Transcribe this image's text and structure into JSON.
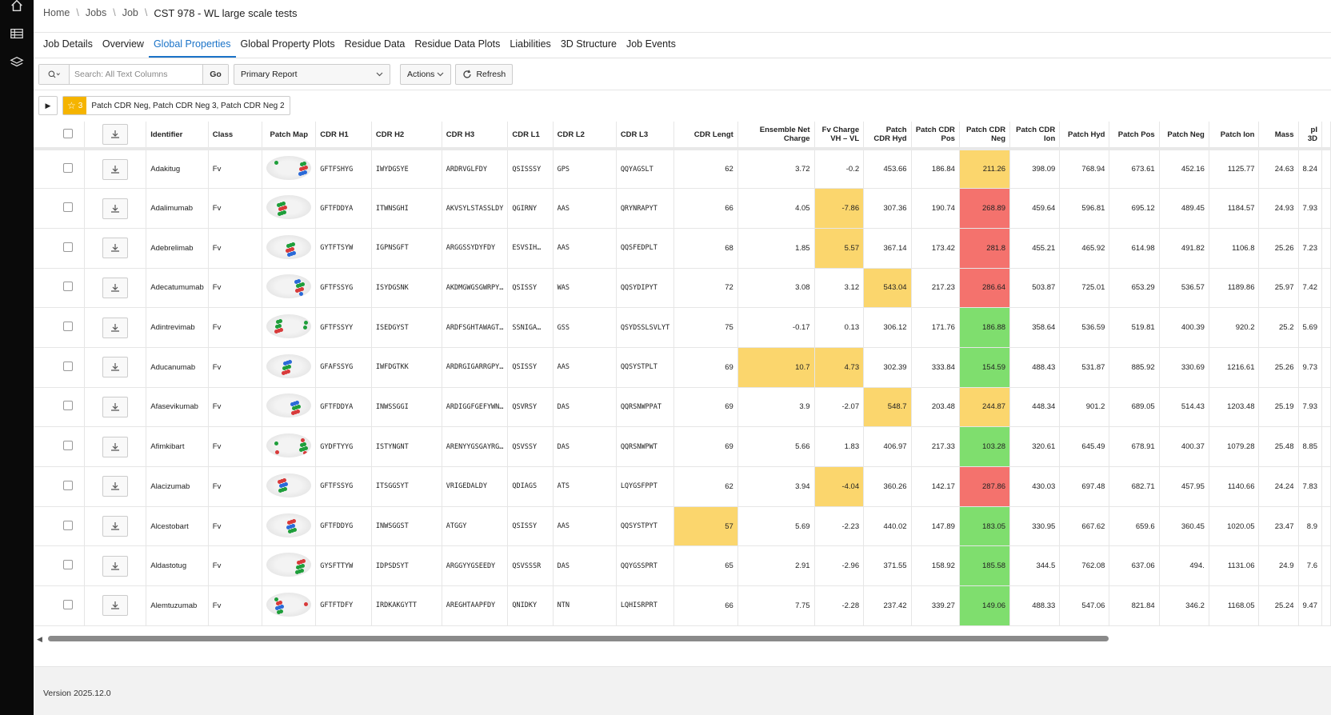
{
  "sidebar": {
    "items": [
      {
        "icon": "home-icon"
      },
      {
        "icon": "table-icon"
      },
      {
        "icon": "layers-icon"
      }
    ]
  },
  "breadcrumb": {
    "items": [
      "Home",
      "Jobs",
      "Job"
    ],
    "current": "CST 978 - WL large scale tests"
  },
  "tabs": [
    "Job Details",
    "Overview",
    "Global Properties",
    "Global Property Plots",
    "Residue Data",
    "Residue Data Plots",
    "Liabilities",
    "3D Structure",
    "Job Events"
  ],
  "active_tab": "Global Properties",
  "toolbar": {
    "search_placeholder": "Search: All Text Columns",
    "go_label": "Go",
    "report_label": "Primary Report",
    "actions_label": "Actions",
    "refresh_label": "Refresh"
  },
  "filter": {
    "count": "3",
    "text": "Patch CDR Neg, Patch CDR Neg 3, Patch CDR Neg 2"
  },
  "colors": {
    "yellow": "#fbd66d",
    "red": "#f4726d",
    "green": "#7fde6e",
    "accent": "#1a73c8"
  },
  "columns": [
    "Identifier",
    "Class",
    "Patch Map",
    "CDR H1",
    "CDR H2",
    "CDR H3",
    "CDR L1",
    "CDR L2",
    "CDR L3",
    "CDR Lengt",
    "Ensemble Net Charge",
    "Fv Charge VH – VL",
    "Patch CDR Hyd",
    "Patch CDR Pos",
    "Patch CDR Neg",
    "Patch CDR Ion",
    "Patch Hyd",
    "Patch Pos",
    "Patch Neg",
    "Patch Ion",
    "Mass",
    "pI 3D"
  ],
  "rows": [
    {
      "id": "Adakitug",
      "cls": "Fv",
      "h1": "GFTFSHYG",
      "h2": "IWYDGSYE",
      "h3": "ARDRVGLFDY",
      "l1": "QSISSSY",
      "l2": "GPS",
      "l3": "QQYAGSLT",
      "len": "62",
      "enc": "3.72",
      "fvc": "-0.2",
      "pch": "453.66",
      "pcp": "186.84",
      "pcn": "211.26",
      "pci": "398.09",
      "ph": "768.94",
      "pp": "673.61",
      "pn": "452.16",
      "pi": "1125.77",
      "mass": "24.63",
      "pi3d": "8.24",
      "hl": {
        "pcn": "y"
      }
    },
    {
      "id": "Adalimumab",
      "cls": "Fv",
      "h1": "GFTFDDYA",
      "h2": "ITWNSGHI",
      "h3": "AKVSYLSTASSLDY",
      "l1": "QGIRNY",
      "l2": "AAS",
      "l3": "QRYNRAPYT",
      "len": "66",
      "enc": "4.05",
      "fvc": "-7.86",
      "pch": "307.36",
      "pcp": "190.74",
      "pcn": "268.89",
      "pci": "459.64",
      "ph": "596.81",
      "pp": "695.12",
      "pn": "489.45",
      "pi": "1184.57",
      "mass": "24.93",
      "pi3d": "7.93",
      "hl": {
        "fvc": "y",
        "pcn": "r"
      }
    },
    {
      "id": "Adebrelimab",
      "cls": "Fv",
      "h1": "GYTFTSYW",
      "h2": "IGPNSGFT",
      "h3": "ARGGSSYDYFDY",
      "l1": "ESVSIH…",
      "l2": "AAS",
      "l3": "QQSFEDPLT",
      "len": "68",
      "enc": "1.85",
      "fvc": "5.57",
      "pch": "367.14",
      "pcp": "173.42",
      "pcn": "281.8",
      "pci": "455.21",
      "ph": "465.92",
      "pp": "614.98",
      "pn": "491.82",
      "pi": "1106.8",
      "mass": "25.26",
      "pi3d": "7.23",
      "hl": {
        "fvc": "y",
        "pcn": "r"
      }
    },
    {
      "id": "Adecatumumab",
      "cls": "Fv",
      "h1": "GFTFSSYG",
      "h2": "ISYDGSNK",
      "h3": "AKDMGWGSGWRPY…",
      "l1": "QSISSY",
      "l2": "WAS",
      "l3": "QQSYDIPYT",
      "len": "72",
      "enc": "3.08",
      "fvc": "3.12",
      "pch": "543.04",
      "pcp": "217.23",
      "pcn": "286.64",
      "pci": "503.87",
      "ph": "725.01",
      "pp": "653.29",
      "pn": "536.57",
      "pi": "1189.86",
      "mass": "25.97",
      "pi3d": "7.42",
      "hl": {
        "pch": "y",
        "pcn": "r"
      }
    },
    {
      "id": "Adintrevimab",
      "cls": "Fv",
      "h1": "GFTFSSYY",
      "h2": "ISEDGYST",
      "h3": "ARDFSGHTAWAGT…",
      "l1": "SSNIGA…",
      "l2": "GSS",
      "l3": "QSYDSSLSVLYT",
      "len": "75",
      "enc": "-0.17",
      "fvc": "0.13",
      "pch": "306.12",
      "pcp": "171.76",
      "pcn": "186.88",
      "pci": "358.64",
      "ph": "536.59",
      "pp": "519.81",
      "pn": "400.39",
      "pi": "920.2",
      "mass": "25.2",
      "pi3d": "5.69",
      "hl": {
        "pcn": "g"
      }
    },
    {
      "id": "Aducanumab",
      "cls": "Fv",
      "h1": "GFAFSSYG",
      "h2": "IWFDGTKK",
      "h3": "ARDRGIGARRGPY…",
      "l1": "QSISSY",
      "l2": "AAS",
      "l3": "QQSYSTPLT",
      "len": "69",
      "enc": "10.7",
      "fvc": "4.73",
      "pch": "302.39",
      "pcp": "333.84",
      "pcn": "154.59",
      "pci": "488.43",
      "ph": "531.87",
      "pp": "885.92",
      "pn": "330.69",
      "pi": "1216.61",
      "mass": "25.26",
      "pi3d": "9.73",
      "hl": {
        "enc": "y",
        "fvc": "y",
        "pcn": "g"
      }
    },
    {
      "id": "Afasevikumab",
      "cls": "Fv",
      "h1": "GFTFDDYA",
      "h2": "INWSSGGI",
      "h3": "ARDIGGFGEFYWN…",
      "l1": "QSVRSY",
      "l2": "DAS",
      "l3": "QQRSNWPPAT",
      "len": "69",
      "enc": "3.9",
      "fvc": "-2.07",
      "pch": "548.7",
      "pcp": "203.48",
      "pcn": "244.87",
      "pci": "448.34",
      "ph": "901.2",
      "pp": "689.05",
      "pn": "514.43",
      "pi": "1203.48",
      "mass": "25.19",
      "pi3d": "7.93",
      "hl": {
        "pch": "y",
        "pcn": "y"
      }
    },
    {
      "id": "Afimkibart",
      "cls": "Fv",
      "h1": "GYDFTYYG",
      "h2": "ISTYNGNT",
      "h3": "ARENYYGSGAYRG…",
      "l1": "QSVSSY",
      "l2": "DAS",
      "l3": "QQRSNWPWT",
      "len": "69",
      "enc": "5.66",
      "fvc": "1.83",
      "pch": "406.97",
      "pcp": "217.33",
      "pcn": "103.28",
      "pci": "320.61",
      "ph": "645.49",
      "pp": "678.91",
      "pn": "400.37",
      "pi": "1079.28",
      "mass": "25.48",
      "pi3d": "8.85",
      "hl": {
        "pcn": "g"
      }
    },
    {
      "id": "Alacizumab",
      "cls": "Fv",
      "h1": "GFTFSSYG",
      "h2": "ITSGGSYT",
      "h3": "VRIGEDALDY",
      "l1": "QDIAGS",
      "l2": "ATS",
      "l3": "LQYGSFPPT",
      "len": "62",
      "enc": "3.94",
      "fvc": "-4.04",
      "pch": "360.26",
      "pcp": "142.17",
      "pcn": "287.86",
      "pci": "430.03",
      "ph": "697.48",
      "pp": "682.71",
      "pn": "457.95",
      "pi": "1140.66",
      "mass": "24.24",
      "pi3d": "7.83",
      "hl": {
        "fvc": "y",
        "pcn": "r"
      }
    },
    {
      "id": "Alcestobart",
      "cls": "Fv",
      "h1": "GFTFDDYG",
      "h2": "INWSGGST",
      "h3": "ATGGY",
      "l1": "QSISSY",
      "l2": "AAS",
      "l3": "QQSYSTPYT",
      "len": "57",
      "enc": "5.69",
      "fvc": "-2.23",
      "pch": "440.02",
      "pcp": "147.89",
      "pcn": "183.05",
      "pci": "330.95",
      "ph": "667.62",
      "pp": "659.6",
      "pn": "360.45",
      "pi": "1020.05",
      "mass": "23.47",
      "pi3d": "8.9",
      "hl": {
        "len": "y",
        "pcn": "g"
      }
    },
    {
      "id": "Aldastotug",
      "cls": "Fv",
      "h1": "GYSFTTYW",
      "h2": "IDPSDSYT",
      "h3": "ARGGYYGSEEDY",
      "l1": "QSVSSSR",
      "l2": "DAS",
      "l3": "QQYGSSPRT",
      "len": "65",
      "enc": "2.91",
      "fvc": "-2.96",
      "pch": "371.55",
      "pcp": "158.92",
      "pcn": "185.58",
      "pci": "344.5",
      "ph": "762.08",
      "pp": "637.06",
      "pn": "494.",
      "pi": "1131.06",
      "mass": "24.9",
      "pi3d": "7.6",
      "hl": {
        "pcn": "g"
      }
    },
    {
      "id": "Alemtuzumab",
      "cls": "Fv",
      "h1": "GFTFTDFY",
      "h2": "IRDKAKGYTT",
      "h3": "AREGHTAAPFDY",
      "l1": "QNIDKY",
      "l2": "NTN",
      "l3": "LQHISRPRT",
      "len": "66",
      "enc": "7.75",
      "fvc": "-2.28",
      "pch": "237.42",
      "pcp": "339.27",
      "pcn": "149.06",
      "pci": "488.33",
      "ph": "547.06",
      "pp": "821.84",
      "pn": "346.2",
      "pi": "1168.05",
      "mass": "25.24",
      "pi3d": "9.47",
      "hl": {
        "pcn": "g"
      }
    }
  ],
  "footer": {
    "version": "Version 2025.12.0"
  }
}
